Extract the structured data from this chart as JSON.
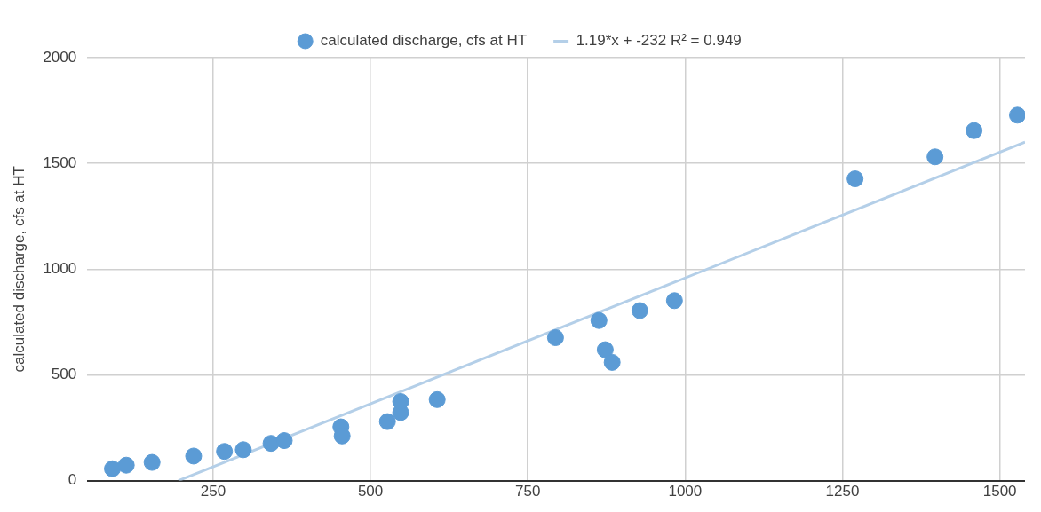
{
  "chart_data": {
    "type": "scatter",
    "ylabel": "calculated discharge, cfs at HT",
    "xlim": [
      50,
      1540
    ],
    "xticks": [
      250,
      500,
      750,
      1000,
      1250,
      1500
    ],
    "ylim": [
      0,
      2000
    ],
    "yticks": [
      0,
      500,
      1000,
      1500,
      2000
    ],
    "grid": true,
    "legend": "top",
    "marker": "circle",
    "series": [
      {
        "name": "calculated discharge, cfs at HT",
        "color": "#5b9bd5",
        "x": [
          90,
          112,
          153,
          219,
          268,
          298,
          342,
          363,
          453,
          455,
          527,
          548,
          548,
          606,
          794,
          863,
          873,
          884,
          928,
          983,
          1270,
          1397,
          1459,
          1528
        ],
        "values": [
          56,
          73,
          86,
          116,
          138,
          146,
          176,
          189,
          254,
          211,
          279,
          322,
          374,
          383,
          676,
          757,
          619,
          559,
          804,
          851,
          1427,
          1531,
          1655,
          1728
        ]
      },
      {
        "type": "line",
        "name": "1.19*x + -232 R² = 0.949",
        "color": "#b4cfe8",
        "marker": "none",
        "x": [
          195,
          1540
        ],
        "values": [
          0,
          1601
        ]
      }
    ]
  }
}
